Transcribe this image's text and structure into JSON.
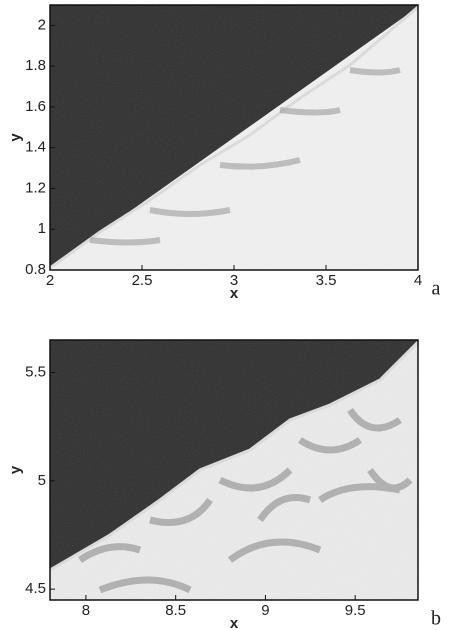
{
  "chart_data": [
    {
      "type": "image",
      "xlabel": "x",
      "ylabel": "y",
      "panel_label": "a",
      "xlim": [
        2,
        4
      ],
      "ylim": [
        0.8,
        2.1
      ],
      "xticks": [
        2,
        2.5,
        3,
        3.5,
        4
      ],
      "yticks": [
        0.8,
        1,
        1.2,
        1.4,
        1.6,
        1.8,
        2
      ]
    },
    {
      "type": "image",
      "xlabel": "x",
      "ylabel": "y",
      "panel_label": "b",
      "xlim": [
        7.8,
        9.85
      ],
      "ylim": [
        4.45,
        5.65
      ],
      "xticks": [
        8,
        8.5,
        9,
        9.5
      ],
      "yticks": [
        4.5,
        5,
        5.5
      ]
    }
  ]
}
